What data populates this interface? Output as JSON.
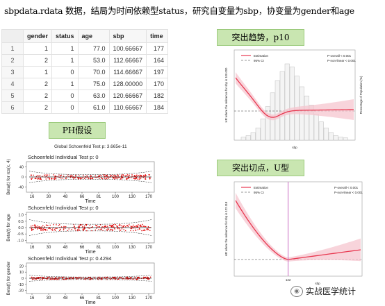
{
  "heading": "sbpdata.rdata 数据，结局为时间依赖型status，研究自变量为sbp，协变量为gender和age",
  "table": {
    "columns": [
      "gender",
      "status",
      "age",
      "sbp",
      "time"
    ],
    "rows": [
      {
        "n": "1",
        "cells": [
          "1",
          "1",
          "77.0",
          "100.66667",
          "177"
        ]
      },
      {
        "n": "2",
        "cells": [
          "2",
          "1",
          "53.0",
          "112.66667",
          "164"
        ]
      },
      {
        "n": "3",
        "cells": [
          "1",
          "0",
          "70.0",
          "114.66667",
          "197"
        ]
      },
      {
        "n": "4",
        "cells": [
          "2",
          "1",
          "75.0",
          "128.00000",
          "170"
        ]
      },
      {
        "n": "5",
        "cells": [
          "2",
          "0",
          "63.0",
          "120.66667",
          "182"
        ]
      },
      {
        "n": "6",
        "cells": [
          "2",
          "0",
          "61.0",
          "110.66667",
          "184"
        ]
      }
    ]
  },
  "tags": {
    "ph": "PH假设",
    "trend": "突出趋势，p10",
    "cut": "突出切点，U型"
  },
  "schoenfeld": {
    "global": "Global Schoenfeld Test p: 3.665e-11",
    "xticks": [
      "16",
      "30",
      "48",
      "66",
      "81",
      "100",
      "130",
      "170"
    ],
    "xlabel": "Time",
    "panels": [
      {
        "title": "Schoenfeld Individual Test p: 0",
        "ylabel": "Beta(t) for rcs(x, 4)",
        "yticks": [
          "40",
          "0",
          "-40"
        ],
        "yvals": [
          40,
          0,
          -40
        ],
        "ymin": -60,
        "ymax": 60,
        "spread": 9
      },
      {
        "title": "Schoenfeld Individual Test p: 0",
        "ylabel": "Beta(t) for age",
        "yticks": [
          "1.0",
          "0.5",
          "0.0",
          "-0.5",
          "-1.0"
        ],
        "yvals": [
          1.0,
          0.5,
          0.0,
          -0.5,
          -1.0
        ],
        "ymin": -1.2,
        "ymax": 1.2,
        "spread": 0.25
      },
      {
        "title": "Schoenfeld Individual Test p: 0.4294",
        "ylabel": "Beta(t) for gender",
        "yticks": [
          "20",
          "10",
          "0",
          "-10",
          "-20"
        ],
        "yvals": [
          20,
          10,
          0,
          -10,
          -20
        ],
        "ymin": -25,
        "ymax": 25,
        "spread": 2
      }
    ]
  },
  "rcs_top": {
    "legend": [
      "Estimation",
      "95% CI"
    ],
    "pvals": [
      "P-overall < 0.001",
      "P-non-linear < 0.001"
    ],
    "ylabel": "HR where the reference for sbp is 100.000",
    "y2label": "Percentage of Population (%)",
    "xlabel": "sbp"
  },
  "rcs_bottom": {
    "legend": [
      "Estimation",
      "95% CI"
    ],
    "pvals": [
      "P-overall < 0.001",
      "P-non-linear < 0.001"
    ],
    "ylabel": "HR where the reference for sbp is 122.118",
    "xlabel": "sbp",
    "xtick": "122"
  },
  "watermark": "实战医学统计",
  "colors": {
    "accent": "#e8374f",
    "ci_fill": "#f6c6cf",
    "tag_bg": "#c9e6b1",
    "scatter": "#e00000"
  }
}
